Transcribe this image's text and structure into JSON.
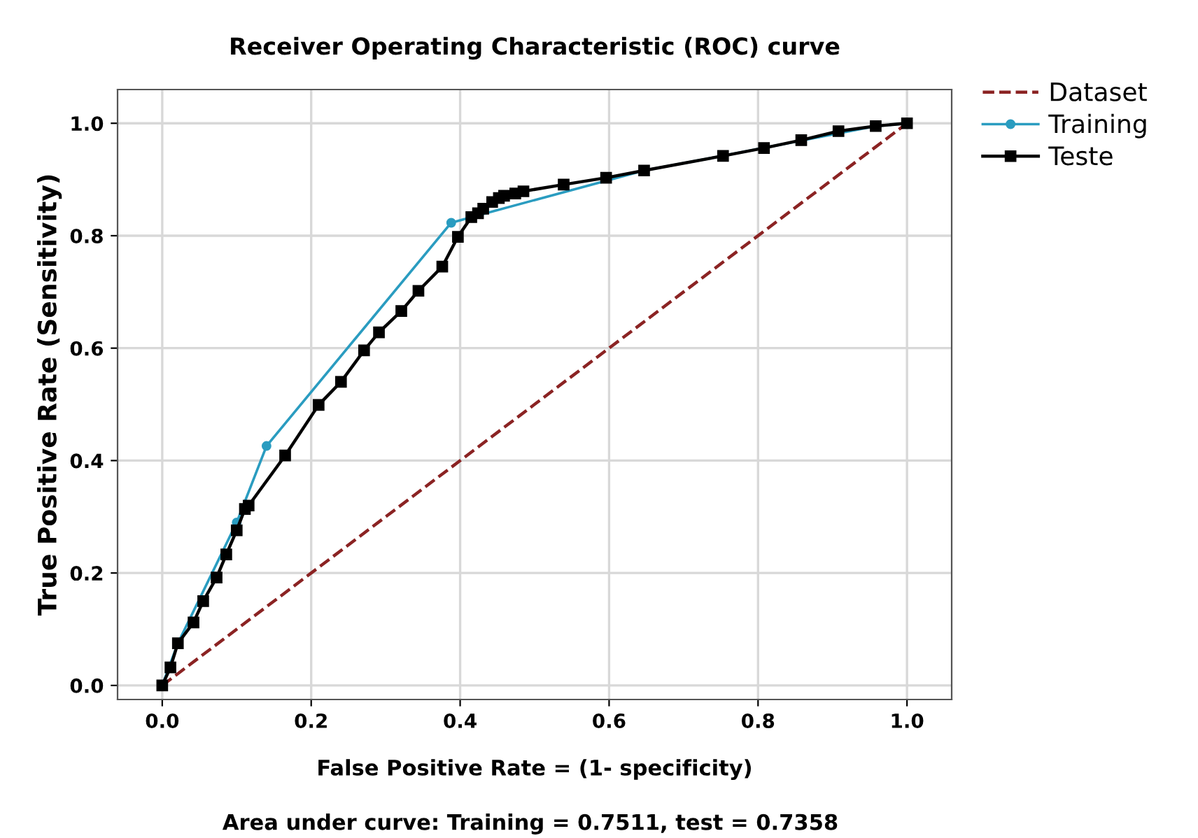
{
  "chart_data": {
    "type": "line",
    "title": "Receiver Operating Characteristic (ROC) curve",
    "xlabel": "False Positive Rate = (1- specificity)",
    "ylabel": "True Positive Rate (Sensitivity)",
    "annotations": [
      "Area under curve: Training = 0.7511, test = 0.7358"
    ],
    "series": [
      {
        "name": "Dataset",
        "color": "#8b2323",
        "line_style": "dashed",
        "marker": "none",
        "x": [
          0,
          1
        ],
        "values": [
          0,
          1
        ]
      },
      {
        "name": "Training",
        "color": "#2a9cc0",
        "line_style": "solid",
        "marker": "circle",
        "x": [
          0,
          0.021,
          0.1,
          0.14,
          0.388,
          0.415,
          0.647,
          0.753,
          0.958,
          1
        ],
        "values": [
          0,
          0.075,
          0.29,
          0.426,
          0.823,
          0.833,
          0.916,
          0.942,
          0.995,
          1
        ]
      },
      {
        "name": "Teste",
        "color": "#000000",
        "line_style": "solid",
        "marker": "square",
        "x": [
          0,
          0.011,
          0.021,
          0.042,
          0.055,
          0.073,
          0.086,
          0.1,
          0.111,
          0.116,
          0.165,
          0.21,
          0.24,
          0.271,
          0.291,
          0.321,
          0.344,
          0.376,
          0.397,
          0.415,
          0.424,
          0.431,
          0.443,
          0.452,
          0.459,
          0.474,
          0.485,
          0.539,
          0.596,
          0.647,
          0.753,
          0.808,
          0.858,
          0.908,
          0.958,
          1
        ],
        "values": [
          0,
          0.032,
          0.075,
          0.112,
          0.15,
          0.192,
          0.233,
          0.276,
          0.314,
          0.32,
          0.409,
          0.499,
          0.54,
          0.596,
          0.628,
          0.666,
          0.702,
          0.745,
          0.798,
          0.833,
          0.84,
          0.848,
          0.86,
          0.867,
          0.871,
          0.875,
          0.879,
          0.891,
          0.903,
          0.916,
          0.942,
          0.956,
          0.97,
          0.986,
          0.995,
          1
        ]
      }
    ],
    "xlim": [
      -0.06,
      1.06
    ],
    "ylim": [
      -0.025,
      1.06
    ],
    "xticks": [
      {
        "value": 0,
        "label": "0.0"
      },
      {
        "value": 0.2,
        "label": "0.2"
      },
      {
        "value": 0.4,
        "label": "0.4"
      },
      {
        "value": 0.6,
        "label": "0.6"
      },
      {
        "value": 0.8,
        "label": "0.8"
      },
      {
        "value": 1,
        "label": "1.0"
      }
    ],
    "yticks": [
      {
        "value": 0,
        "label": "0.0"
      },
      {
        "value": 0.2,
        "label": "0.2"
      },
      {
        "value": 0.4,
        "label": "0.4"
      },
      {
        "value": 0.6,
        "label": "0.6"
      },
      {
        "value": 0.8,
        "label": "0.8"
      },
      {
        "value": 1,
        "label": "1.0"
      }
    ],
    "grid": true,
    "legend": "top right"
  }
}
